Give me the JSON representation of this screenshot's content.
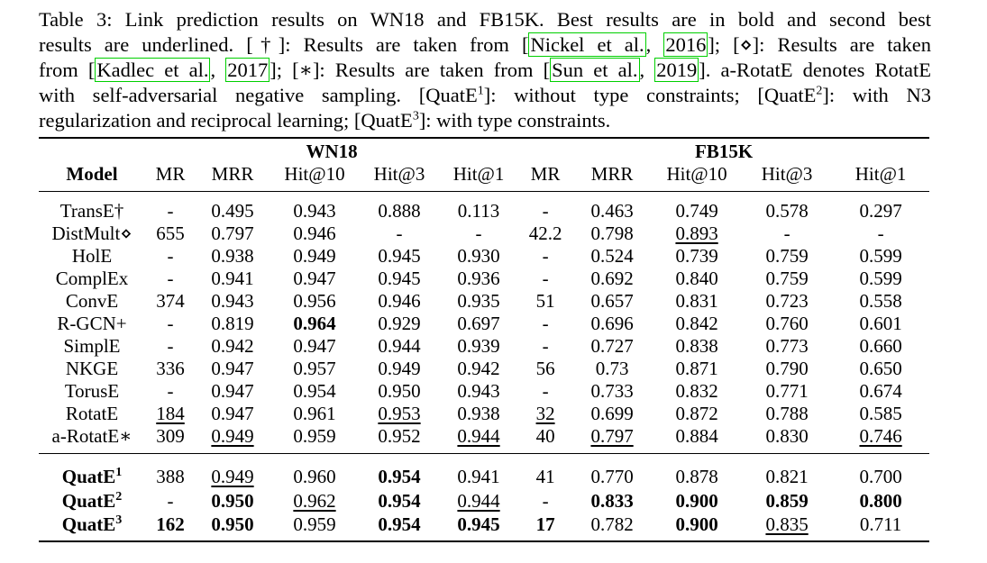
{
  "caption": {
    "line1": "Table 3: Link prediction results on WN18 and FB15K. Best results are in bold and second best",
    "line2_a": "results are underlined. [†]: Results are taken from [",
    "line2_cite1": "Nickel et al.",
    "line2_b": ", ",
    "line2_cite2": "2016",
    "line2_c": "]; [⋄]: Results are taken",
    "line3_a": "from [",
    "line3_cite1": "Kadlec et al.",
    "line3_b": ", ",
    "line3_cite2": "2017",
    "line3_c": "]; [∗]: Results are taken from [",
    "line3_cite3": "Sun et al.",
    "line3_d": ", ",
    "line3_cite4": "2019",
    "line3_e": "]. a-RotatE denotes RotatE",
    "line4_a": "with self-adversarial negative sampling. [QuatE",
    "line4_sup1": "1",
    "line4_b": "]: without type constraints; [QuatE",
    "line4_sup2": "2",
    "line4_c": "]: with N3",
    "line5_a": "regularization and reciprocal learning; [QuatE",
    "line5_sup": "3",
    "line5_b": "]: with type constraints."
  },
  "table": {
    "group1": "WN18",
    "group2": "FB15K",
    "headers": [
      "Model",
      "MR",
      "MRR",
      "Hit@10",
      "Hit@3",
      "Hit@1",
      "MR",
      "MRR",
      "Hit@10",
      "Hit@3",
      "Hit@1"
    ],
    "rows": [
      [
        "TransE†",
        "-",
        "0.495",
        "0.943",
        "0.888",
        "0.113",
        "-",
        "0.463",
        "0.749",
        "0.578",
        "0.297"
      ],
      [
        "DistMult⋄",
        "655",
        "0.797",
        "0.946",
        "-",
        "-",
        "42.2",
        "0.798",
        "0.893",
        "-",
        "-"
      ],
      [
        "HolE",
        "-",
        "0.938",
        "0.949",
        "0.945",
        "0.930",
        "-",
        "0.524",
        "0.739",
        "0.759",
        "0.599"
      ],
      [
        "ComplEx",
        "-",
        "0.941",
        "0.947",
        "0.945",
        "0.936",
        "-",
        "0.692",
        "0.840",
        "0.759",
        "0.599"
      ],
      [
        "ConvE",
        "374",
        "0.943",
        "0.956",
        "0.946",
        "0.935",
        "51",
        "0.657",
        "0.831",
        "0.723",
        "0.558"
      ],
      [
        "R-GCN+",
        "-",
        "0.819",
        "0.964",
        "0.929",
        "0.697",
        "-",
        "0.696",
        "0.842",
        "0.760",
        "0.601"
      ],
      [
        "SimplE",
        "-",
        "0.942",
        "0.947",
        "0.944",
        "0.939",
        "-",
        "0.727",
        "0.838",
        "0.773",
        "0.660"
      ],
      [
        "NKGE",
        "336",
        "0.947",
        "0.957",
        "0.949",
        "0.942",
        "56",
        "0.73",
        "0.871",
        "0.790",
        "0.650"
      ],
      [
        "TorusE",
        "-",
        "0.947",
        "0.954",
        "0.950",
        "0.943",
        "-",
        "0.733",
        "0.832",
        "0.771",
        "0.674"
      ],
      [
        "RotatE",
        "184",
        "0.947",
        "0.961",
        "0.953",
        "0.938",
        "32",
        "0.699",
        "0.872",
        "0.788",
        "0.585"
      ],
      [
        "a-RotatE∗",
        "309",
        "0.949",
        "0.959",
        "0.952",
        "0.944",
        "40",
        "0.797",
        "0.884",
        "0.830",
        "0.746"
      ]
    ],
    "quate_rows": [
      [
        "QuatE",
        "1",
        "388",
        "0.949",
        "0.960",
        "0.954",
        "0.941",
        "41",
        "0.770",
        "0.878",
        "0.821",
        "0.700"
      ],
      [
        "QuatE",
        "2",
        "-",
        "0.950",
        "0.962",
        "0.954",
        "0.944",
        "-",
        "0.833",
        "0.900",
        "0.859",
        "0.800"
      ],
      [
        "QuatE",
        "3",
        "162",
        "0.950",
        "0.959",
        "0.954",
        "0.945",
        "17",
        "0.782",
        "0.900",
        "0.835",
        "0.711"
      ]
    ]
  }
}
